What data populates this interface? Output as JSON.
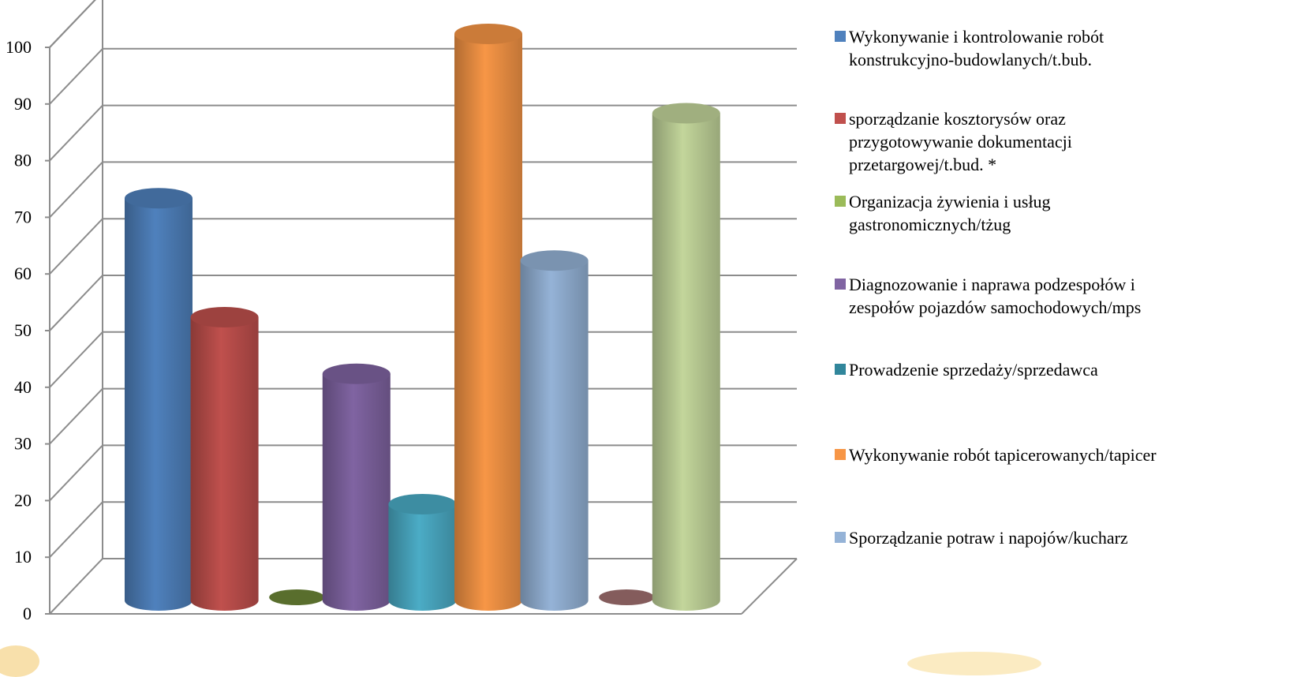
{
  "chart_data": {
    "type": "bar",
    "style": "3d-cylinder",
    "ylim": [
      0,
      100
    ],
    "yticks": [
      "0",
      "10",
      "20",
      "30",
      "40",
      "50",
      "60",
      "70",
      "80",
      "90",
      "100"
    ],
    "grid": true,
    "legend_position": "right",
    "title": "",
    "xlabel": "",
    "ylabel": "",
    "series": [
      {
        "name": "Wykonywanie i kontrolowanie robót konstrukcyjno-budowlanych/t.bub.",
        "value": 71,
        "color": "#4f81bd"
      },
      {
        "name": "sporządzanie kosztorysów oraz przygotowywanie dokumentacji przetargowej/t.bud. *",
        "value": 50,
        "color": "#c0504d"
      },
      {
        "name": " Organizacja żywienia i usług gastronomicznych/tżug",
        "value": 0,
        "color": "#77933c"
      },
      {
        "name": "Diagnozowanie i naprawa podzespołów i zespołów pojazdów samochodowych/mps",
        "value": 40,
        "color": "#8064a2"
      },
      {
        "name": "Prowadzenie sprzedaży/sprzedawca",
        "value": 17,
        "color": "#4bacc6"
      },
      {
        "name": "Wykonywanie robót tapicerowanych/tapicer",
        "value": 100,
        "color": "#f79646"
      },
      {
        "name": "Sporządzanie potraw i napojów/kucharz",
        "value": 60,
        "color": "#95b3d7"
      },
      {
        "name": "",
        "value": 0,
        "color": "#b07a7a"
      },
      {
        "name": "",
        "value": 86,
        "color": "#c3d69b"
      }
    ]
  },
  "legend": {
    "items": [
      {
        "lines": [
          "Wykonywanie i kontrolowanie robót",
          "konstrukcyjno-budowlanych/t.bub."
        ],
        "color": "#4f81bd"
      },
      {
        "lines": [
          "sporządzanie kosztorysów oraz",
          "przygotowywanie dokumentacji",
          "przetargowej/t.bud. *"
        ],
        "color": "#c0504d"
      },
      {
        "lines": [
          " Organizacja żywienia i usług",
          "gastronomicznych/tżug"
        ],
        "color": "#9bbb59"
      },
      {
        "lines": [
          "Diagnozowanie i naprawa podzespołów i",
          "zespołów pojazdów samochodowych/mps"
        ],
        "color": "#8064a2"
      },
      {
        "lines": [
          "Prowadzenie sprzedaży/sprzedawca"
        ],
        "color": "#31869b"
      },
      {
        "lines": [
          "Wykonywanie robót tapicerowanych/tapicer"
        ],
        "color": "#f79646"
      },
      {
        "lines": [
          "Sporządzanie potraw i napojów/kucharz"
        ],
        "color": "#95b3d7"
      }
    ]
  }
}
